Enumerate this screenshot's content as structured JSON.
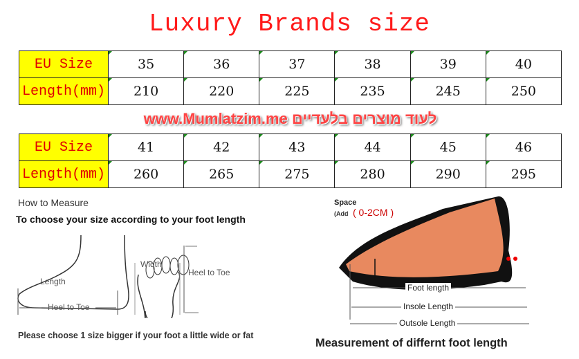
{
  "title": "Luxury Brands size",
  "tables": [
    {
      "row_labels": [
        "EU Size",
        "Length(mm)"
      ],
      "eu": [
        "35",
        "36",
        "37",
        "38",
        "39",
        "40"
      ],
      "length": [
        "210",
        "220",
        "225",
        "235",
        "245",
        "250"
      ]
    },
    {
      "row_labels": [
        "EU Size",
        "Length(mm)"
      ],
      "eu": [
        "41",
        "42",
        "43",
        "44",
        "45",
        "46"
      ],
      "length": [
        "260",
        "265",
        "275",
        "280",
        "290",
        "295"
      ]
    }
  ],
  "how_to": {
    "heading": "How to Measure",
    "subheading": "To choose your size according to your foot length",
    "length_label": "Length",
    "heel_to_toe": "Heel to Toe",
    "width_label": "Width",
    "heel_to_toe_2": "Heel to Toe",
    "note": "Please choose 1 size bigger if your foot a little wide or fat"
  },
  "shoe": {
    "space_label": "Space",
    "add_label": "(Add",
    "add_value": "( 0-2CM )",
    "foot_length": "Foot length",
    "insole_length": "Insole Length",
    "outsole_length": "Outsole Length",
    "caption": "Measurement of differnt foot length"
  },
  "watermark": {
    "text": "www.Mumlatzim.me לעוד מוצרים בלעדיים",
    "color": "#ff4444"
  },
  "colors": {
    "title": "#ff1a1a",
    "header_bg": "#ffff00",
    "header_text": "#e00000"
  }
}
